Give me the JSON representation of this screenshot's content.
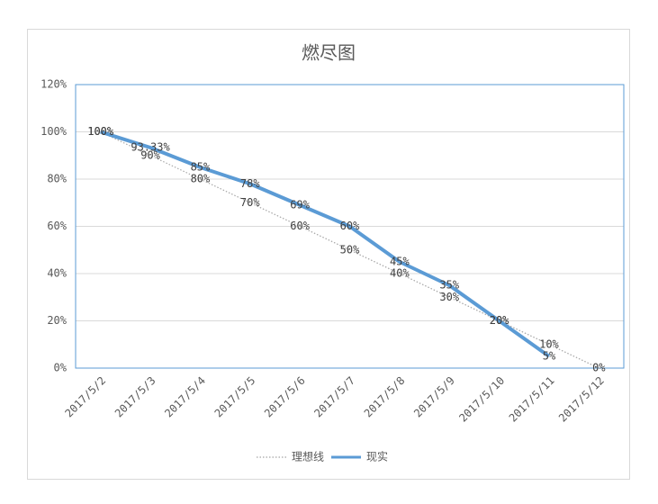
{
  "chart_data": {
    "type": "line",
    "title": "燃尽图",
    "categories": [
      "2017/5/2",
      "2017/5/3",
      "2017/5/4",
      "2017/5/5",
      "2017/5/6",
      "2017/5/7",
      "2017/5/8",
      "2017/5/9",
      "2017/5/10",
      "2017/5/11",
      "2017/5/12"
    ],
    "series": [
      {
        "name": "理想线",
        "color": "#a5a5a5",
        "style": "dotted",
        "values": [
          100,
          90,
          80,
          70,
          60,
          50,
          40,
          30,
          20,
          10,
          0
        ],
        "value_labels": [
          "100%",
          "90%",
          "80%",
          "70%",
          "60%",
          "50%",
          "40%",
          "30%",
          "20%",
          "10%",
          "0%"
        ]
      },
      {
        "name": "现实",
        "color": "#5b9bd5",
        "style": "solid",
        "values": [
          100,
          93.33,
          85,
          78,
          69,
          60,
          45,
          35,
          20,
          5,
          null
        ],
        "value_labels": [
          "100%",
          "93.33%",
          "85%",
          "78%",
          "69%",
          "60%",
          "45%",
          "35%",
          "20%",
          "5%",
          null
        ]
      }
    ],
    "ylim": [
      0,
      120
    ],
    "yticks": [
      {
        "value": 0,
        "label": "0%"
      },
      {
        "value": 20,
        "label": "20%"
      },
      {
        "value": 40,
        "label": "40%"
      },
      {
        "value": 60,
        "label": "60%"
      },
      {
        "value": 80,
        "label": "80%"
      },
      {
        "value": 100,
        "label": "100%"
      },
      {
        "value": 120,
        "label": "120%"
      }
    ],
    "grid": true,
    "legend": "bottom"
  }
}
